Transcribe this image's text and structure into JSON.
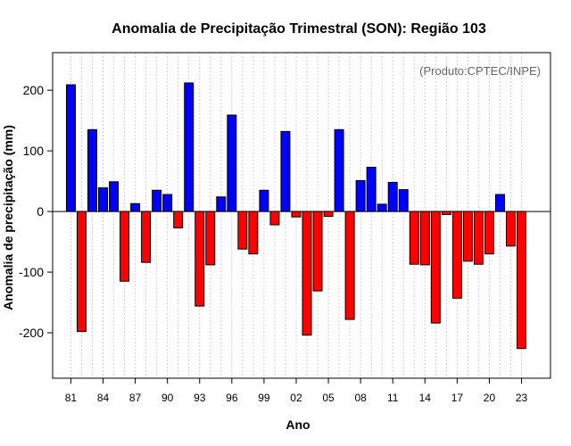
{
  "chart_data": {
    "type": "bar",
    "title": "Anomalia de Precipitação Trimestral (SON): Região 103",
    "xlabel": "Ano",
    "ylabel": "Anomalia de precipitação (mm)",
    "credit": "(Produto:CPTEC/INPE)",
    "ylim": [
      -275,
      262
    ],
    "yticks": [
      -200,
      -100,
      0,
      100,
      200
    ],
    "xtick_labels": [
      "81",
      "84",
      "87",
      "90",
      "93",
      "96",
      "99",
      "02",
      "05",
      "08",
      "11",
      "14",
      "17",
      "20",
      "23"
    ],
    "categories": [
      "1981",
      "1982",
      "1983",
      "1984",
      "1985",
      "1986",
      "1987",
      "1988",
      "1989",
      "1990",
      "1991",
      "1992",
      "1993",
      "1994",
      "1995",
      "1996",
      "1997",
      "1998",
      "1999",
      "2000",
      "2001",
      "2002",
      "2003",
      "2004",
      "2005",
      "2006",
      "2007",
      "2008",
      "2009",
      "2010",
      "2011",
      "2012",
      "2013",
      "2014",
      "2015",
      "2016",
      "2017",
      "2018",
      "2019",
      "2020",
      "2021",
      "2022",
      "2023"
    ],
    "values": [
      209,
      -198,
      135,
      39,
      49,
      -115,
      13,
      -84,
      35,
      28,
      -27,
      212,
      -156,
      -88,
      24,
      159,
      -62,
      -70,
      35,
      -22,
      132,
      -9,
      -204,
      -131,
      -8,
      135,
      -178,
      51,
      73,
      12,
      48,
      36,
      -87,
      -88,
      -184,
      -5,
      -143,
      -82,
      -87,
      -70,
      28,
      -57,
      -226
    ],
    "positive_color": "#0000ff",
    "negative_color": "#ff0000",
    "grid": true
  }
}
